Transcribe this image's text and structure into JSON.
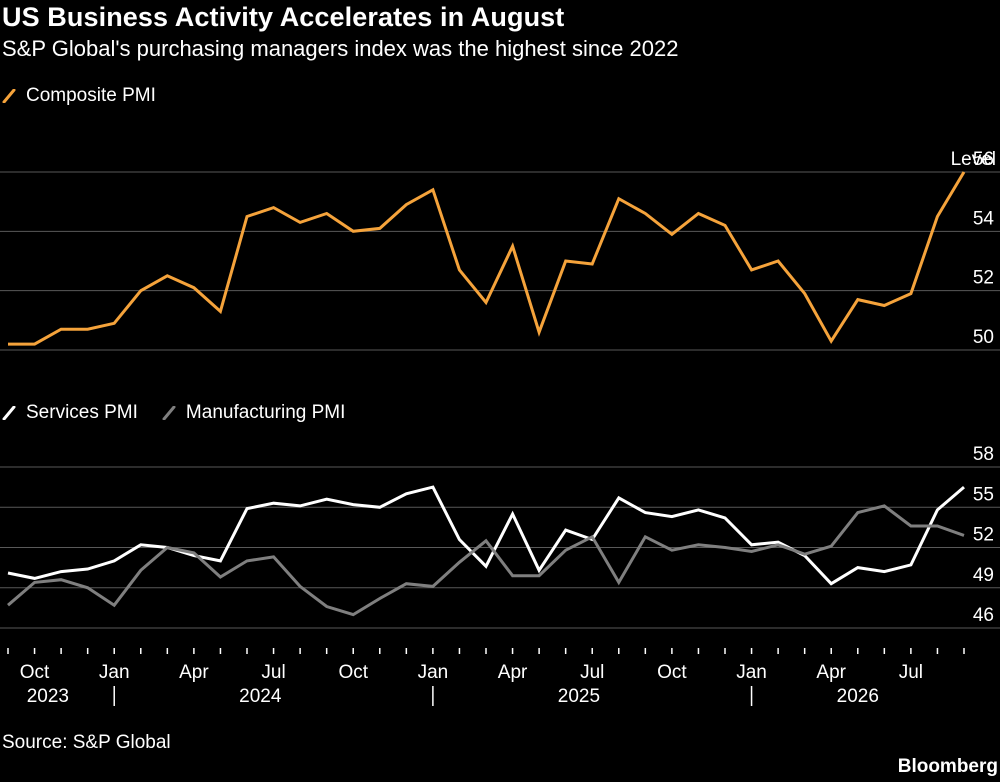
{
  "header": {
    "title": "US Business Activity Accelerates in August",
    "subtitle": "S&P Global's purchasing managers index was the highest since 2022"
  },
  "footer": {
    "source": "Source: S&P Global",
    "brand": "Bloomberg"
  },
  "colors": {
    "composite": "#f5a33b",
    "services": "#ffffff",
    "manufacturing": "#7f7f7f",
    "grid": "#595959",
    "text": "#ffffff",
    "background": "#000000"
  },
  "chart_data": [
    {
      "type": "line",
      "panel": "top",
      "title": "",
      "ylabel": "Level",
      "ylim": [
        49.5,
        56.7
      ],
      "yticks": [
        50,
        52,
        54,
        56
      ],
      "grid": true,
      "legend_placement": "top-left",
      "x": [
        "2023-09",
        "2023-10",
        "2023-11",
        "2023-12",
        "2024-01",
        "2024-02",
        "2024-03",
        "2024-04",
        "2024-05",
        "2024-06",
        "2024-07",
        "2024-08",
        "2024-09",
        "2024-10",
        "2024-11",
        "2024-12",
        "2025-01",
        "2025-02",
        "2025-03",
        "2025-04",
        "2025-05",
        "2025-06",
        "2025-07",
        "2025-08",
        "2025-09",
        "2025-10",
        "2025-11",
        "2025-12",
        "2026-01",
        "2026-02",
        "2026-03",
        "2026-04",
        "2026-05",
        "2026-06",
        "2026-07",
        "2026-08",
        "2026-09"
      ],
      "series": [
        {
          "name": "Composite PMI",
          "values": [
            50.2,
            50.2,
            50.7,
            50.7,
            50.9,
            52.0,
            52.5,
            52.1,
            51.3,
            54.5,
            54.8,
            54.3,
            54.6,
            54.0,
            54.1,
            54.9,
            55.4,
            52.7,
            51.6,
            53.5,
            50.6,
            53.0,
            52.9,
            55.1,
            54.6,
            53.9,
            54.6,
            54.2,
            52.7,
            53.0,
            51.9,
            50.3,
            51.7,
            51.5,
            51.9,
            54.5,
            56.0
          ]
        }
      ]
    },
    {
      "type": "line",
      "panel": "bottom",
      "title": "",
      "ylim": [
        45,
        58
      ],
      "yticks": [
        46,
        49,
        52,
        55,
        58
      ],
      "grid": true,
      "legend_placement": "top-left",
      "x_axis": {
        "month_ticks": [
          "Oct",
          "Jan",
          "Apr",
          "Jul",
          "Oct",
          "Jan",
          "Apr",
          "Jul",
          "Oct",
          "Jan",
          "Apr",
          "Jul"
        ],
        "year_labels": [
          "2023",
          "2024",
          "2025",
          "2026"
        ]
      },
      "x": [
        "2023-09",
        "2023-10",
        "2023-11",
        "2023-12",
        "2024-01",
        "2024-02",
        "2024-03",
        "2024-04",
        "2024-05",
        "2024-06",
        "2024-07",
        "2024-08",
        "2024-09",
        "2024-10",
        "2024-11",
        "2024-12",
        "2025-01",
        "2025-02",
        "2025-03",
        "2025-04",
        "2025-05",
        "2025-06",
        "2025-07",
        "2025-08",
        "2025-09",
        "2025-10",
        "2025-11",
        "2025-12",
        "2026-01",
        "2026-02",
        "2026-03",
        "2026-04",
        "2026-05",
        "2026-06",
        "2026-07",
        "2026-08",
        "2026-09"
      ],
      "series": [
        {
          "name": "Services PMI",
          "values": [
            50.1,
            49.7,
            50.2,
            50.4,
            51.0,
            52.2,
            52.0,
            51.4,
            51.0,
            54.9,
            55.3,
            55.1,
            55.6,
            55.2,
            55.0,
            56.0,
            56.5,
            52.6,
            50.6,
            54.5,
            50.3,
            53.3,
            52.6,
            55.7,
            54.6,
            54.3,
            54.8,
            54.2,
            52.2,
            52.4,
            51.4,
            49.3,
            50.5,
            50.2,
            50.7,
            54.8,
            56.5
          ]
        },
        {
          "name": "Manufacturing PMI",
          "values": [
            47.7,
            49.4,
            49.6,
            49.0,
            47.7,
            50.3,
            52.0,
            51.6,
            49.8,
            51.0,
            51.3,
            49.1,
            47.6,
            47.0,
            48.2,
            49.3,
            49.1,
            50.9,
            52.5,
            49.9,
            49.9,
            51.8,
            52.8,
            49.4,
            52.8,
            51.8,
            52.2,
            52.0,
            51.7,
            52.2,
            51.5,
            52.1,
            54.6,
            55.1,
            53.6,
            53.6,
            52.9
          ]
        }
      ]
    }
  ]
}
